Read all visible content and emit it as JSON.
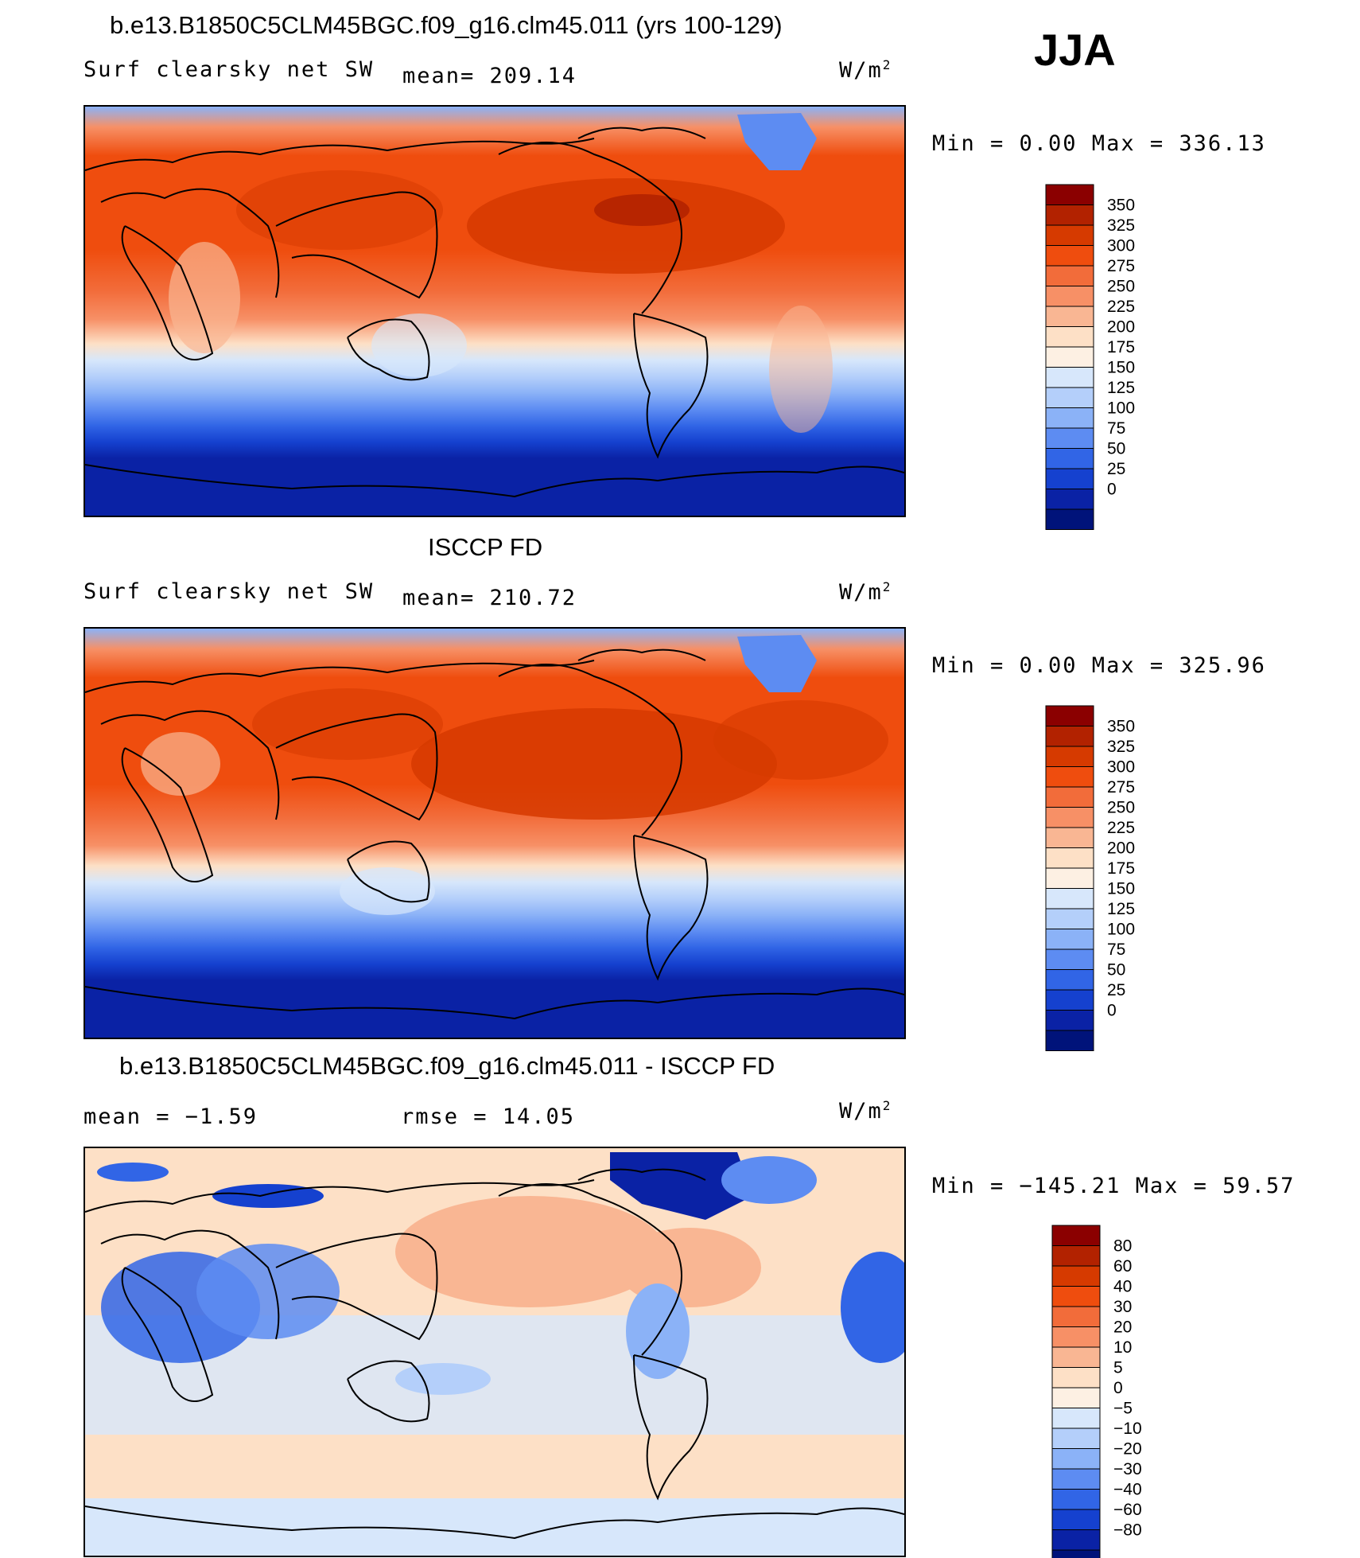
{
  "season": "JJA",
  "units": "W/m",
  "units_exp": "2",
  "panels": [
    {
      "id": "model",
      "title": "b.e13.B1850C5CLM45BGC.f09_g16.clm45.011 (yrs 100-129)",
      "field": "Surf clearsky net SW",
      "stat1": "mean= 209.14",
      "stat2": "",
      "minmax": "Min =    0.00 Max = 336.13"
    },
    {
      "id": "obs",
      "title": "ISCCP FD",
      "field": "Surf clearsky net SW",
      "stat1": "mean= 210.72",
      "stat2": "",
      "minmax": "Min =    0.00 Max = 325.96"
    },
    {
      "id": "diff",
      "title": "b.e13.B1850C5CLM45BGC.f09_g16.clm45.011 - ISCCP FD",
      "field": "",
      "stat1": "mean =   −1.59",
      "stat2": "rmse =   14.05",
      "minmax": "Min = −145.21 Max =   59.57"
    }
  ],
  "chart_data": [
    {
      "type": "heatmap",
      "title": "b.e13.B1850C5CLM45BGC.f09_g16.clm45.011 (yrs 100-129)",
      "subtitle": "Surf clearsky net SW",
      "mean": 209.14,
      "min": 0.0,
      "max": 336.13,
      "units": "W/m2",
      "colorbar_levels": [
        "350",
        "325",
        "300",
        "275",
        "250",
        "225",
        "200",
        "175",
        "150",
        "125",
        "100",
        "75",
        "50",
        "25",
        "0"
      ],
      "colorbar_colors": [
        "#8b0000",
        "#b22200",
        "#d63a00",
        "#ef4d0e",
        "#f26c3a",
        "#f79066",
        "#f9b693",
        "#fde0c6",
        "#fdf0e3",
        "#d7e7fb",
        "#b4cffa",
        "#8bb2f7",
        "#5d8cf2",
        "#3165e6",
        "#1541cf",
        "#0a22a5",
        "#00137a"
      ]
    },
    {
      "type": "heatmap",
      "title": "ISCCP FD",
      "subtitle": "Surf clearsky net SW",
      "mean": 210.72,
      "min": 0.0,
      "max": 325.96,
      "units": "W/m2",
      "colorbar_levels": [
        "350",
        "325",
        "300",
        "275",
        "250",
        "225",
        "200",
        "175",
        "150",
        "125",
        "100",
        "75",
        "50",
        "25",
        "0"
      ],
      "colorbar_colors": [
        "#8b0000",
        "#b22200",
        "#d63a00",
        "#ef4d0e",
        "#f26c3a",
        "#f79066",
        "#f9b693",
        "#fde0c6",
        "#fdf0e3",
        "#d7e7fb",
        "#b4cffa",
        "#8bb2f7",
        "#5d8cf2",
        "#3165e6",
        "#1541cf",
        "#0a22a5",
        "#00137a"
      ]
    },
    {
      "type": "heatmap",
      "title": "b.e13.B1850C5CLM45BGC.f09_g16.clm45.011 - ISCCP FD",
      "mean": -1.59,
      "rmse": 14.05,
      "min": -145.21,
      "max": 59.57,
      "units": "W/m2",
      "colorbar_levels": [
        "80",
        "60",
        "40",
        "30",
        "20",
        "10",
        "5",
        "0",
        "−5",
        "−10",
        "−20",
        "−30",
        "−40",
        "−60",
        "−80"
      ],
      "colorbar_colors": [
        "#8b0000",
        "#b22200",
        "#d63a00",
        "#ef4d0e",
        "#f26c3a",
        "#f79066",
        "#f9b693",
        "#fde0c6",
        "#fdf0e3",
        "#d7e7fb",
        "#b4cffa",
        "#8bb2f7",
        "#5d8cf2",
        "#3165e6",
        "#1541cf",
        "#0a22a5",
        "#00137a"
      ]
    }
  ]
}
